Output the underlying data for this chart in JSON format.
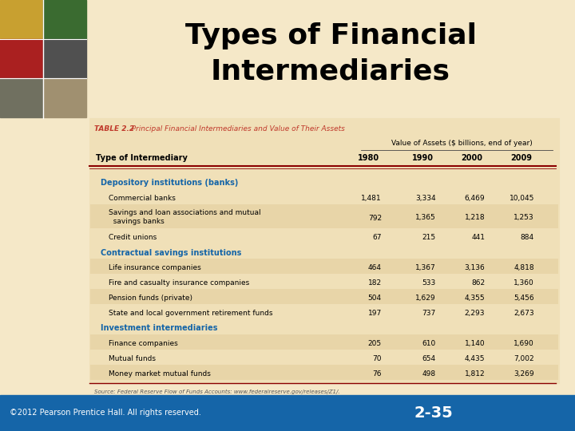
{
  "title_line1": "Types of Financial",
  "title_line2": "Intermediaries",
  "title_color": "#000000",
  "title_fontsize": 26,
  "bg_color": "#f5e8c8",
  "footer_bg": "#1565a8",
  "footer_text_left": "©2012 Pearson Prentice Hall. All rights reserved.",
  "footer_text_right": "2-35",
  "footer_color": "#ffffff",
  "table_title_bold": "TABLE 2.2",
  "table_title_normal": "   Principal Financial Intermediaries and Value of Their Assets",
  "table_title_color": "#c0392b",
  "table_header_value": "Value of Assets ($ billions, end of year)",
  "col_headers": [
    "Type of Intermediary",
    "1980",
    "1990",
    "2000",
    "2009"
  ],
  "section_color": "#1565a8",
  "table_bg": "#f0e0b8",
  "table_border_color": "#888888",
  "header_line_color": "#8B0000",
  "rows": [
    {
      "label": "Depository institutions (banks)",
      "section": true,
      "values": [
        "",
        "",
        "",
        ""
      ],
      "two_line": false
    },
    {
      "label": "Commercial banks",
      "section": false,
      "values": [
        "1,481",
        "3,334",
        "6,469",
        "10,045"
      ],
      "two_line": false
    },
    {
      "label": "Savings and loan associations and mutual\n  savings banks",
      "section": false,
      "values": [
        "792",
        "1,365",
        "1,218",
        "1,253"
      ],
      "two_line": true
    },
    {
      "label": "Credit unions",
      "section": false,
      "values": [
        "67",
        "215",
        "441",
        "884"
      ],
      "two_line": false
    },
    {
      "label": "Contractual savings institutions",
      "section": true,
      "values": [
        "",
        "",
        "",
        ""
      ],
      "two_line": false
    },
    {
      "label": "Life insurance companies",
      "section": false,
      "values": [
        "464",
        "1,367",
        "3,136",
        "4,818"
      ],
      "two_line": false
    },
    {
      "label": "Fire and casualty insurance companies",
      "section": false,
      "values": [
        "182",
        "533",
        "862",
        "1,360"
      ],
      "two_line": false
    },
    {
      "label": "Pension funds (private)",
      "section": false,
      "values": [
        "504",
        "1,629",
        "4,355",
        "5,456"
      ],
      "two_line": false
    },
    {
      "label": "State and local government retirement funds",
      "section": false,
      "values": [
        "197",
        "737",
        "2,293",
        "2,673"
      ],
      "two_line": false
    },
    {
      "label": "Investment intermediaries",
      "section": true,
      "values": [
        "",
        "",
        "",
        ""
      ],
      "two_line": false
    },
    {
      "label": "Finance companies",
      "section": false,
      "values": [
        "205",
        "610",
        "1,140",
        "1,690"
      ],
      "two_line": false
    },
    {
      "label": "Mutual funds",
      "section": false,
      "values": [
        "70",
        "654",
        "4,435",
        "7,002"
      ],
      "two_line": false
    },
    {
      "label": "Money market mutual funds",
      "section": false,
      "values": [
        "76",
        "498",
        "1,812",
        "3,269"
      ],
      "two_line": false
    }
  ],
  "source_text": "Source: Federal Reserve Flow of Funds Accounts: www.federalreserve.gov/releases/Z1/.",
  "photo_colors": [
    "#b8860b",
    "#556b2f",
    "#8b2020",
    "#505050"
  ],
  "photo_top_colors": [
    "#c8a822",
    "#4a7c3f"
  ]
}
